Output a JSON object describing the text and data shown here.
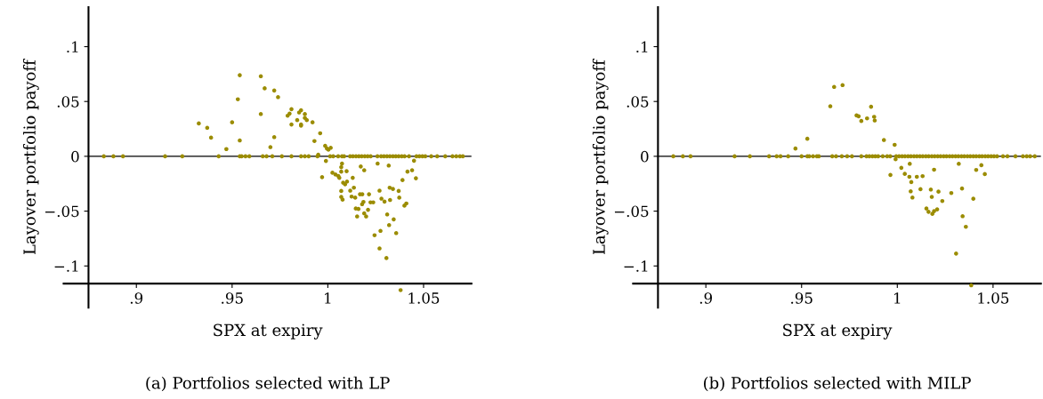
{
  "chart_data": [
    {
      "type": "scatter",
      "title": "(a) Portfolios selected with LP",
      "xlabel": "SPX at expiry",
      "ylabel": "Layover portfolio payoff",
      "xlim": [
        0.862,
        1.075
      ],
      "ylim": [
        -0.138,
        0.136
      ],
      "xticks": [
        {
          "value": 0.9,
          "label": ".9"
        },
        {
          "value": 0.95,
          "label": ".95"
        },
        1,
        {
          "value": 1.05,
          "label": "1.05"
        }
      ],
      "yticks": [
        {
          "value": -0.1,
          "label": "−.1"
        },
        {
          "value": -0.05,
          "label": "−.05"
        },
        0,
        {
          "value": 0.05,
          "label": ".05"
        },
        {
          "value": 0.1,
          "label": ".1"
        }
      ],
      "marker": "circle",
      "grid": false,
      "ref_lines": [
        {
          "axis": "y",
          "value": 0,
          "label": null,
          "color": "#000000",
          "line_style": "solid"
        }
      ],
      "series": [
        {
          "color": "#9b8c00",
          "x": [
            0.883,
            0.888,
            0.893,
            0.915,
            0.924,
            0.943,
            0.954,
            0.955,
            0.957,
            0.959,
            0.966,
            0.968,
            0.971,
            0.976,
            0.981,
            0.986,
            0.988,
            0.99,
            0.9946,
            1.0012,
            1.0028,
            1.0054,
            1.0074,
            1.0085,
            1.0116,
            1.0131,
            1.0147,
            1.0162,
            1.0177,
            1.0193,
            1.0208,
            1.0224,
            1.0259,
            1.0278,
            1.0293,
            1.0309,
            1.0324,
            1.034,
            1.0355,
            1.037,
            1.0386,
            1.0401,
            1.0424,
            1.0463,
            1.0478,
            1.0494,
            1.0509,
            1.054,
            1.0571,
            1.0613,
            1.0651,
            1.0671,
            1.069,
            1.0705,
            0.9326,
            0.937,
            0.939,
            0.947,
            0.95,
            0.953,
            0.954,
            0.954,
            0.965,
            0.965,
            0.967,
            0.97,
            0.972,
            0.972,
            0.974,
            0.979,
            0.98,
            0.981,
            0.981,
            0.984,
            0.985,
            0.986,
            0.986,
            0.986,
            0.988,
            0.988,
            0.989,
            0.992,
            0.993,
            0.995,
            0.996,
            0.997,
            0.9986,
            0.9995,
            1.0003,
            1.0015,
            0.999,
            1.0024,
            1.004,
            1.0055,
            1.006,
            1.007,
            1.0074,
            1.007,
            1.008,
            1.009,
            1.0098,
            1.01,
            1.007,
            1.007,
            1.0077,
            1.0117,
            1.0124,
            1.013,
            1.0136,
            1.0143,
            1.0146,
            1.0153,
            1.016,
            1.0172,
            1.0168,
            1.018,
            1.0179,
            1.019,
            1.0186,
            1.019,
            1.02,
            1.021,
            1.0215,
            1.0223,
            1.0237,
            1.0244,
            1.026,
            1.027,
            1.027,
            1.0275,
            1.028,
            1.0296,
            1.0306,
            1.031,
            1.0318,
            1.032,
            1.0323,
            1.0325,
            1.034,
            1.0344,
            1.0357,
            1.037,
            1.0373,
            1.038,
            1.039,
            1.04,
            1.041,
            1.0416,
            1.044,
            1.045,
            1.046
          ],
          "values": [
            0,
            0,
            0,
            0,
            0,
            0,
            0,
            0,
            0,
            0,
            0,
            0,
            0,
            0,
            0,
            0,
            0,
            0,
            0,
            0,
            0,
            0,
            0,
            0,
            0,
            0,
            0,
            0,
            0,
            0,
            0,
            0,
            0,
            0,
            0,
            0,
            0,
            0,
            0,
            0,
            0,
            0,
            0,
            0,
            0,
            0,
            0,
            0,
            0,
            0,
            0,
            0,
            0,
            0,
            0.03,
            0.026,
            0.017,
            0.0066,
            0.031,
            0.052,
            0.074,
            0.0145,
            0.0386,
            0.073,
            0.062,
            0.0084,
            0.06,
            0.0175,
            0.054,
            0.037,
            0.039,
            0.043,
            0.029,
            0.033,
            0.04,
            0.028,
            0.029,
            0.042,
            0.0385,
            0.035,
            0.033,
            0.031,
            0.0139,
            0.0015,
            0.021,
            -0.019,
            0.0096,
            0.0072,
            0.006,
            0.0078,
            -0.0042,
            -0.015,
            -0.0166,
            -0.018,
            -0.0196,
            -0.0099,
            -0.0066,
            -0.014,
            -0.024,
            -0.0256,
            -0.0136,
            -0.023,
            -0.0316,
            -0.037,
            -0.0395,
            -0.0313,
            -0.0367,
            -0.0196,
            -0.0286,
            -0.0377,
            -0.0476,
            -0.0548,
            -0.048,
            -0.0093,
            -0.0346,
            -0.0346,
            -0.0437,
            -0.0127,
            -0.0416,
            -0.052,
            -0.0548,
            -0.0488,
            -0.0346,
            -0.042,
            -0.042,
            -0.072,
            -0.0066,
            -0.084,
            -0.0313,
            -0.068,
            -0.0386,
            -0.0413,
            -0.0928,
            -0.053,
            -0.0084,
            -0.0627,
            -0.0286,
            -0.0398,
            -0.0298,
            -0.0575,
            -0.07,
            -0.0316,
            -0.0377,
            -0.122,
            -0.0217,
            -0.045,
            -0.043,
            -0.014,
            -0.0127,
            -0.004,
            -0.02
          ]
        }
      ]
    },
    {
      "type": "scatter",
      "title": "(b) Portfolios selected with MILP",
      "xlabel": "SPX at expiry",
      "ylabel": "Layover portfolio payoff",
      "xlim": [
        0.862,
        1.075
      ],
      "ylim": [
        -0.138,
        0.136
      ],
      "xticks": [
        {
          "value": 0.9,
          "label": ".9"
        },
        {
          "value": 0.95,
          "label": ".95"
        },
        1,
        {
          "value": 1.05,
          "label": "1.05"
        }
      ],
      "yticks": [
        {
          "value": -0.1,
          "label": "−.1"
        },
        {
          "value": -0.05,
          "label": "−.05"
        },
        0,
        {
          "value": 0.05,
          "label": ".05"
        },
        {
          "value": 0.1,
          "label": ".1"
        }
      ],
      "marker": "circle",
      "grid": false,
      "ref_lines": [
        {
          "axis": "y",
          "value": 0,
          "label": null,
          "color": "#000000",
          "line_style": "solid"
        }
      ],
      "series": [
        {
          "color": "#9b8c00",
          "x": [
            0.883,
            0.888,
            0.892,
            0.915,
            0.923,
            0.933,
            0.937,
            0.939,
            0.943,
            0.95,
            0.953,
            0.954,
            0.956,
            0.958,
            0.959,
            0.966,
            0.968,
            0.971,
            0.9738,
            0.9763,
            0.9812,
            0.9839,
            0.9854,
            0.987,
            0.9885,
            0.99,
            0.9924,
            0.9947,
            0.9963,
            0.9994,
            1.0009,
            1.0025,
            1.004,
            1.0056,
            1.0071,
            1.0087,
            1.0102,
            1.0118,
            1.0133,
            1.0149,
            1.0164,
            1.018,
            1.0195,
            1.0211,
            1.0226,
            1.0242,
            1.0257,
            1.0273,
            1.0288,
            1.0304,
            1.0319,
            1.0335,
            1.035,
            1.0366,
            1.0381,
            1.0397,
            1.0412,
            1.0428,
            1.0443,
            1.0459,
            1.0474,
            1.049,
            1.0505,
            1.0521,
            1.0552,
            1.0575,
            1.0617,
            1.0656,
            1.0676,
            1.0694,
            1.0718,
            0.9468,
            0.953,
            0.965,
            0.967,
            0.9714,
            0.9787,
            0.9798,
            0.9812,
            0.9842,
            0.9863,
            0.9879,
            0.9882,
            0.993,
            0.9986,
            0.9991,
            0.9964,
            1.0021,
            1.0039,
            1.0065,
            1.0063,
            1.0073,
            1.007,
            1.0079,
            1.0102,
            1.0132,
            1.0121,
            1.0152,
            1.0163,
            1.0175,
            1.018,
            1.0183,
            1.0192,
            1.0208,
            1.0192,
            1.0215,
            1.0235,
            1.0282,
            1.0307,
            1.0321,
            1.0338,
            1.0341,
            1.0358,
            1.0386,
            1.0397,
            1.0412,
            1.0439,
            1.0457
          ],
          "values": [
            0,
            0,
            0,
            0,
            0,
            0,
            0,
            0,
            0,
            0,
            0,
            0,
            0,
            0,
            0,
            0,
            0,
            0,
            0,
            0,
            0,
            0,
            0,
            0,
            0,
            0,
            0,
            0,
            0,
            0,
            0,
            0,
            0,
            0,
            0,
            0,
            0,
            0,
            0,
            0,
            0,
            0,
            0,
            0,
            0,
            0,
            0,
            0,
            0,
            0,
            0,
            0,
            0,
            0,
            0,
            0,
            0,
            0,
            0,
            0,
            0,
            0,
            0,
            0,
            0,
            0,
            0,
            0,
            0,
            0,
            0,
            0.0071,
            0.016,
            0.0457,
            0.0633,
            0.0649,
            0.0373,
            0.0365,
            0.0322,
            0.0346,
            0.0452,
            0.036,
            0.0327,
            0.0149,
            0.0105,
            -0.0027,
            -0.017,
            -0.0105,
            -0.016,
            -0.0068,
            -0.0187,
            -0.0235,
            -0.0319,
            -0.0376,
            -0.0187,
            -0.0181,
            -0.03,
            -0.0476,
            -0.0506,
            -0.0303,
            -0.037,
            -0.0525,
            -0.05,
            -0.0484,
            -0.0122,
            -0.0322,
            -0.0408,
            -0.0335,
            -0.0887,
            -0.0068,
            -0.0294,
            -0.0546,
            -0.0643,
            -0.1176,
            -0.0387,
            -0.0124,
            -0.0081,
            -0.0162
          ]
        }
      ]
    }
  ]
}
